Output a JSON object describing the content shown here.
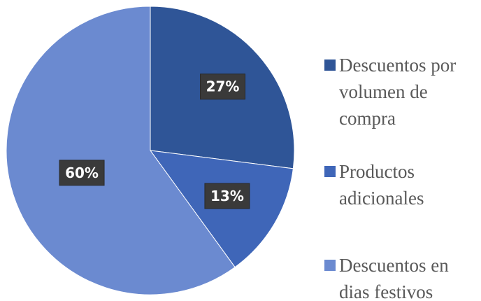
{
  "chart_data": {
    "type": "pie",
    "categories": [
      "Descuentos por volumen de compra",
      "Productos adicionales",
      "Descuentos en dias festivos"
    ],
    "values": [
      27,
      13,
      60
    ],
    "data_labels": [
      "27%",
      "13%",
      "60%"
    ],
    "colors": [
      "#2f5597",
      "#3f66b8",
      "#6b8ad0"
    ],
    "legend_position": "right",
    "title": ""
  }
}
